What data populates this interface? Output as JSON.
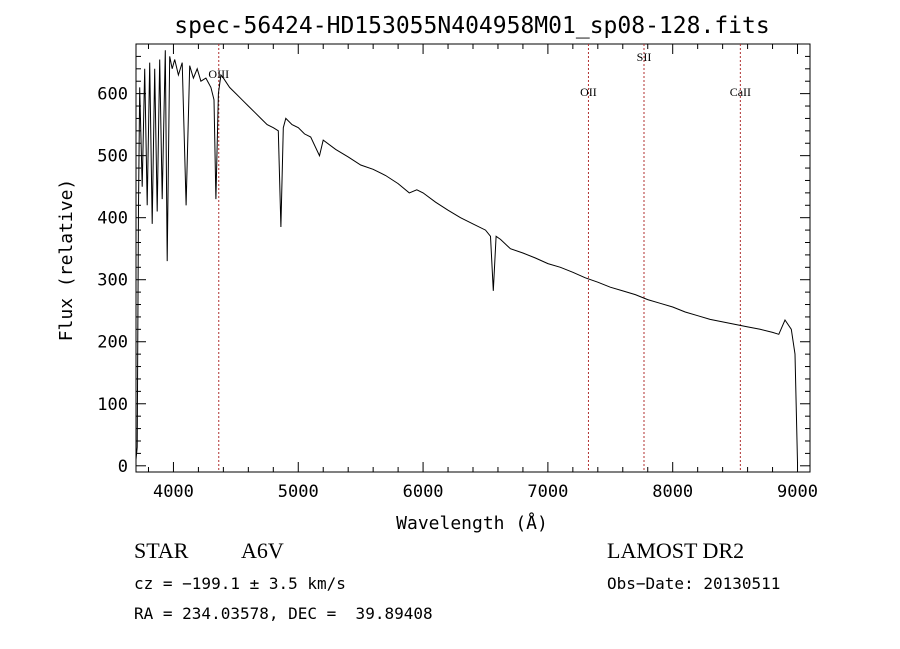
{
  "chart_data": {
    "type": "line",
    "title": "spec-56424-HD153055N404958M01_sp08-128.fits",
    "xlabel": "Wavelength (Å)",
    "ylabel": "Flux (relative)",
    "xlim": [
      3700,
      9100
    ],
    "ylim": [
      -10,
      680
    ],
    "x_ticks": [
      4000,
      5000,
      6000,
      7000,
      8000,
      9000
    ],
    "y_ticks": [
      0,
      100,
      200,
      300,
      400,
      500,
      600
    ],
    "grid": false,
    "series": [
      {
        "x": [
          3700,
          3710,
          3720,
          3730,
          3750,
          3770,
          3790,
          3810,
          3830,
          3850,
          3870,
          3890,
          3910,
          3935,
          3950,
          3970,
          3990,
          4010,
          4040,
          4070,
          4101,
          4130,
          4160,
          4190,
          4220,
          4260,
          4300,
          4325,
          4340,
          4360,
          4380,
          4400,
          4450,
          4500,
          4550,
          4600,
          4650,
          4700,
          4750,
          4800,
          4840,
          4861,
          4880,
          4900,
          4950,
          5000,
          5050,
          5100,
          5170,
          5200,
          5300,
          5400,
          5500,
          5600,
          5700,
          5800,
          5890,
          5950,
          6000,
          6100,
          6200,
          6300,
          6400,
          6500,
          6540,
          6563,
          6585,
          6620,
          6700,
          6800,
          6900,
          7000,
          7100,
          7200,
          7300,
          7400,
          7500,
          7600,
          7700,
          7800,
          7900,
          8000,
          8100,
          8200,
          8300,
          8400,
          8500,
          8600,
          8700,
          8800,
          8850,
          8900,
          8950,
          8980,
          9000
        ],
        "y": [
          10,
          30,
          420,
          610,
          450,
          640,
          420,
          650,
          390,
          640,
          410,
          655,
          430,
          670,
          330,
          660,
          640,
          655,
          630,
          650,
          420,
          645,
          625,
          640,
          620,
          625,
          610,
          590,
          430,
          600,
          630,
          625,
          610,
          600,
          590,
          580,
          570,
          560,
          550,
          545,
          540,
          385,
          545,
          560,
          550,
          545,
          535,
          530,
          500,
          525,
          510,
          498,
          485,
          478,
          468,
          455,
          440,
          445,
          440,
          425,
          412,
          400,
          390,
          380,
          370,
          282,
          370,
          365,
          350,
          343,
          335,
          326,
          320,
          312,
          303,
          296,
          288,
          282,
          276,
          268,
          262,
          256,
          248,
          242,
          236,
          232,
          228,
          224,
          220,
          215,
          212,
          235,
          220,
          180,
          5
        ]
      }
    ],
    "line_markers": [
      {
        "label": "OIII",
        "x": 4363
      },
      {
        "label": "OII",
        "x": 7325
      },
      {
        "label": "SII",
        "x": 7770
      },
      {
        "label": "CaII",
        "x": 8542
      }
    ]
  },
  "info": {
    "class": "STAR",
    "subclass": "A6V",
    "survey": "LAMOST DR2",
    "cz": "cz = −199.1 ± 3.5 km/s",
    "obs_date": "Obs−Date: 20130511",
    "coords": "RA = 234.03578, DEC =  39.89408"
  },
  "colors": {
    "line": "#000000",
    "marker": "#b03030",
    "background": "#ffffff"
  }
}
